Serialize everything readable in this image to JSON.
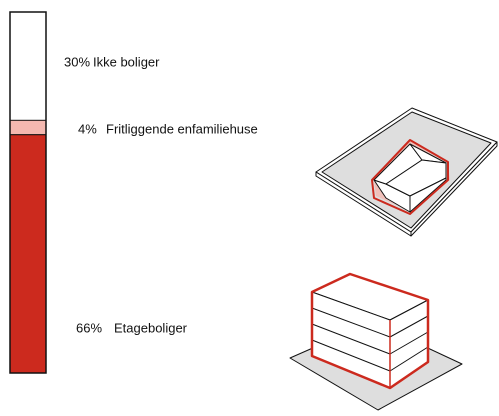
{
  "chart_data": {
    "type": "stacked-bar",
    "categories": [
      "Ikke boliger",
      "Fritliggende enfamiliehuse",
      "Etageboliger"
    ],
    "values": [
      30,
      4,
      66
    ],
    "value_labels": [
      "30%",
      "4%",
      "66%"
    ],
    "colors": [
      "#ffffff",
      "#f4b8b0",
      "#cc2a1e"
    ]
  }
}
